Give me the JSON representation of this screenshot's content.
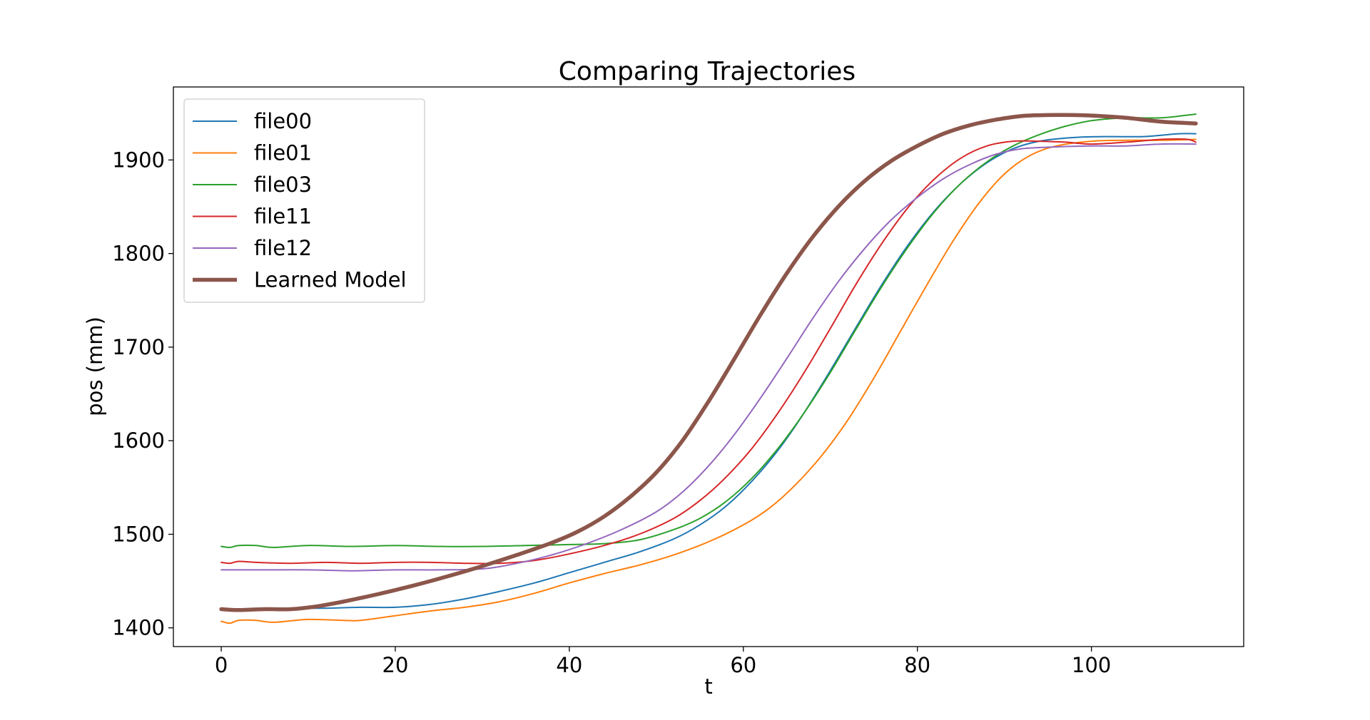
{
  "chart_data": {
    "type": "line",
    "title": "Comparing Trajectories",
    "xlabel": "t",
    "ylabel": "pos (mm)",
    "xlim": [
      -5.5,
      117.5
    ],
    "ylim": [
      1380,
      1978
    ],
    "xticks": [
      0,
      20,
      40,
      60,
      80,
      100
    ],
    "yticks": [
      1400,
      1500,
      1600,
      1700,
      1800,
      1900
    ],
    "grid": false,
    "legend_position": "upper-left",
    "series": [
      {
        "name": "file00",
        "color": "#1f77b4",
        "width": "thin",
        "points": [
          [
            0,
            1420
          ],
          [
            4,
            1420
          ],
          [
            8,
            1421
          ],
          [
            12,
            1421
          ],
          [
            16,
            1422
          ],
          [
            20,
            1422
          ],
          [
            24,
            1425
          ],
          [
            28,
            1431
          ],
          [
            32,
            1439
          ],
          [
            36,
            1448
          ],
          [
            40,
            1459
          ],
          [
            44,
            1470
          ],
          [
            48,
            1481
          ],
          [
            52,
            1495
          ],
          [
            55,
            1510
          ],
          [
            58,
            1530
          ],
          [
            61,
            1557
          ],
          [
            64,
            1590
          ],
          [
            67,
            1630
          ],
          [
            70,
            1675
          ],
          [
            73,
            1722
          ],
          [
            76,
            1768
          ],
          [
            79,
            1810
          ],
          [
            82,
            1846
          ],
          [
            85,
            1875
          ],
          [
            88,
            1897
          ],
          [
            91,
            1912
          ],
          [
            94,
            1920
          ],
          [
            98,
            1924
          ],
          [
            102,
            1925
          ],
          [
            106,
            1925
          ],
          [
            110,
            1928
          ],
          [
            112,
            1928
          ]
        ]
      },
      {
        "name": "file01",
        "color": "#ff7f0e",
        "width": "thin",
        "points": [
          [
            0,
            1407
          ],
          [
            1,
            1405
          ],
          [
            2,
            1408
          ],
          [
            4,
            1408
          ],
          [
            6,
            1406
          ],
          [
            10,
            1409
          ],
          [
            14,
            1408
          ],
          [
            16,
            1408
          ],
          [
            20,
            1413
          ],
          [
            24,
            1418
          ],
          [
            28,
            1422
          ],
          [
            32,
            1428
          ],
          [
            36,
            1437
          ],
          [
            40,
            1448
          ],
          [
            44,
            1458
          ],
          [
            48,
            1467
          ],
          [
            52,
            1478
          ],
          [
            56,
            1492
          ],
          [
            60,
            1510
          ],
          [
            63,
            1528
          ],
          [
            66,
            1553
          ],
          [
            69,
            1584
          ],
          [
            72,
            1622
          ],
          [
            75,
            1667
          ],
          [
            78,
            1716
          ],
          [
            81,
            1765
          ],
          [
            84,
            1812
          ],
          [
            87,
            1853
          ],
          [
            90,
            1885
          ],
          [
            93,
            1905
          ],
          [
            96,
            1915
          ],
          [
            100,
            1920
          ],
          [
            104,
            1921
          ],
          [
            108,
            1921
          ],
          [
            112,
            1922
          ]
        ]
      },
      {
        "name": "file03",
        "color": "#2ca02c",
        "width": "thin",
        "points": [
          [
            0,
            1487
          ],
          [
            1,
            1486
          ],
          [
            2,
            1488
          ],
          [
            4,
            1488
          ],
          [
            6,
            1486
          ],
          [
            10,
            1488
          ],
          [
            15,
            1487
          ],
          [
            20,
            1488
          ],
          [
            25,
            1487
          ],
          [
            30,
            1487
          ],
          [
            35,
            1488
          ],
          [
            40,
            1489
          ],
          [
            44,
            1490
          ],
          [
            48,
            1494
          ],
          [
            52,
            1505
          ],
          [
            55,
            1517
          ],
          [
            58,
            1535
          ],
          [
            61,
            1560
          ],
          [
            64,
            1592
          ],
          [
            67,
            1630
          ],
          [
            70,
            1673
          ],
          [
            73,
            1720
          ],
          [
            76,
            1766
          ],
          [
            79,
            1808
          ],
          [
            82,
            1845
          ],
          [
            85,
            1875
          ],
          [
            88,
            1898
          ],
          [
            91,
            1915
          ],
          [
            94,
            1927
          ],
          [
            97,
            1936
          ],
          [
            100,
            1942
          ],
          [
            104,
            1945
          ],
          [
            108,
            1945
          ],
          [
            112,
            1949
          ]
        ]
      },
      {
        "name": "file11",
        "color": "#d62728",
        "width": "thin",
        "points": [
          [
            0,
            1470
          ],
          [
            1,
            1469
          ],
          [
            2,
            1471
          ],
          [
            4,
            1470
          ],
          [
            8,
            1469
          ],
          [
            12,
            1470
          ],
          [
            16,
            1469
          ],
          [
            20,
            1470
          ],
          [
            24,
            1470
          ],
          [
            28,
            1469
          ],
          [
            32,
            1469
          ],
          [
            36,
            1472
          ],
          [
            40,
            1479
          ],
          [
            44,
            1488
          ],
          [
            48,
            1500
          ],
          [
            52,
            1517
          ],
          [
            55,
            1536
          ],
          [
            58,
            1561
          ],
          [
            61,
            1592
          ],
          [
            64,
            1630
          ],
          [
            67,
            1673
          ],
          [
            70,
            1720
          ],
          [
            73,
            1768
          ],
          [
            76,
            1812
          ],
          [
            79,
            1850
          ],
          [
            82,
            1880
          ],
          [
            85,
            1902
          ],
          [
            88,
            1915
          ],
          [
            91,
            1920
          ],
          [
            94,
            1920
          ],
          [
            97,
            1919
          ],
          [
            100,
            1917
          ],
          [
            104,
            1919
          ],
          [
            108,
            1922
          ],
          [
            111,
            1922
          ],
          [
            112,
            1919
          ]
        ]
      },
      {
        "name": "file12",
        "color": "#9467bd",
        "width": "thin",
        "points": [
          [
            0,
            1462
          ],
          [
            5,
            1462
          ],
          [
            10,
            1462
          ],
          [
            15,
            1461
          ],
          [
            20,
            1462
          ],
          [
            25,
            1462
          ],
          [
            30,
            1463
          ],
          [
            34,
            1469
          ],
          [
            38,
            1478
          ],
          [
            42,
            1490
          ],
          [
            46,
            1505
          ],
          [
            50,
            1524
          ],
          [
            53,
            1545
          ],
          [
            56,
            1573
          ],
          [
            59,
            1607
          ],
          [
            62,
            1646
          ],
          [
            65,
            1688
          ],
          [
            68,
            1731
          ],
          [
            71,
            1771
          ],
          [
            74,
            1806
          ],
          [
            77,
            1836
          ],
          [
            80,
            1860
          ],
          [
            83,
            1880
          ],
          [
            86,
            1895
          ],
          [
            89,
            1906
          ],
          [
            92,
            1912
          ],
          [
            96,
            1914
          ],
          [
            100,
            1915
          ],
          [
            104,
            1915
          ],
          [
            108,
            1917
          ],
          [
            112,
            1917
          ]
        ]
      },
      {
        "name": "Learned Model",
        "color": "#8c564b",
        "width": "thick",
        "points": [
          [
            0,
            1420
          ],
          [
            2,
            1419
          ],
          [
            5,
            1420
          ],
          [
            8,
            1420
          ],
          [
            11,
            1423
          ],
          [
            14,
            1428
          ],
          [
            18,
            1436
          ],
          [
            22,
            1445
          ],
          [
            26,
            1455
          ],
          [
            30,
            1466
          ],
          [
            34,
            1478
          ],
          [
            38,
            1491
          ],
          [
            41,
            1503
          ],
          [
            44,
            1519
          ],
          [
            47,
            1540
          ],
          [
            50,
            1566
          ],
          [
            53,
            1600
          ],
          [
            56,
            1642
          ],
          [
            59,
            1688
          ],
          [
            62,
            1735
          ],
          [
            65,
            1779
          ],
          [
            68,
            1818
          ],
          [
            71,
            1851
          ],
          [
            74,
            1878
          ],
          [
            77,
            1899
          ],
          [
            80,
            1915
          ],
          [
            83,
            1928
          ],
          [
            86,
            1937
          ],
          [
            89,
            1943
          ],
          [
            92,
            1947
          ],
          [
            95,
            1948
          ],
          [
            98,
            1948
          ],
          [
            101,
            1947
          ],
          [
            104,
            1945
          ],
          [
            108,
            1941
          ],
          [
            112,
            1939
          ]
        ]
      }
    ]
  }
}
